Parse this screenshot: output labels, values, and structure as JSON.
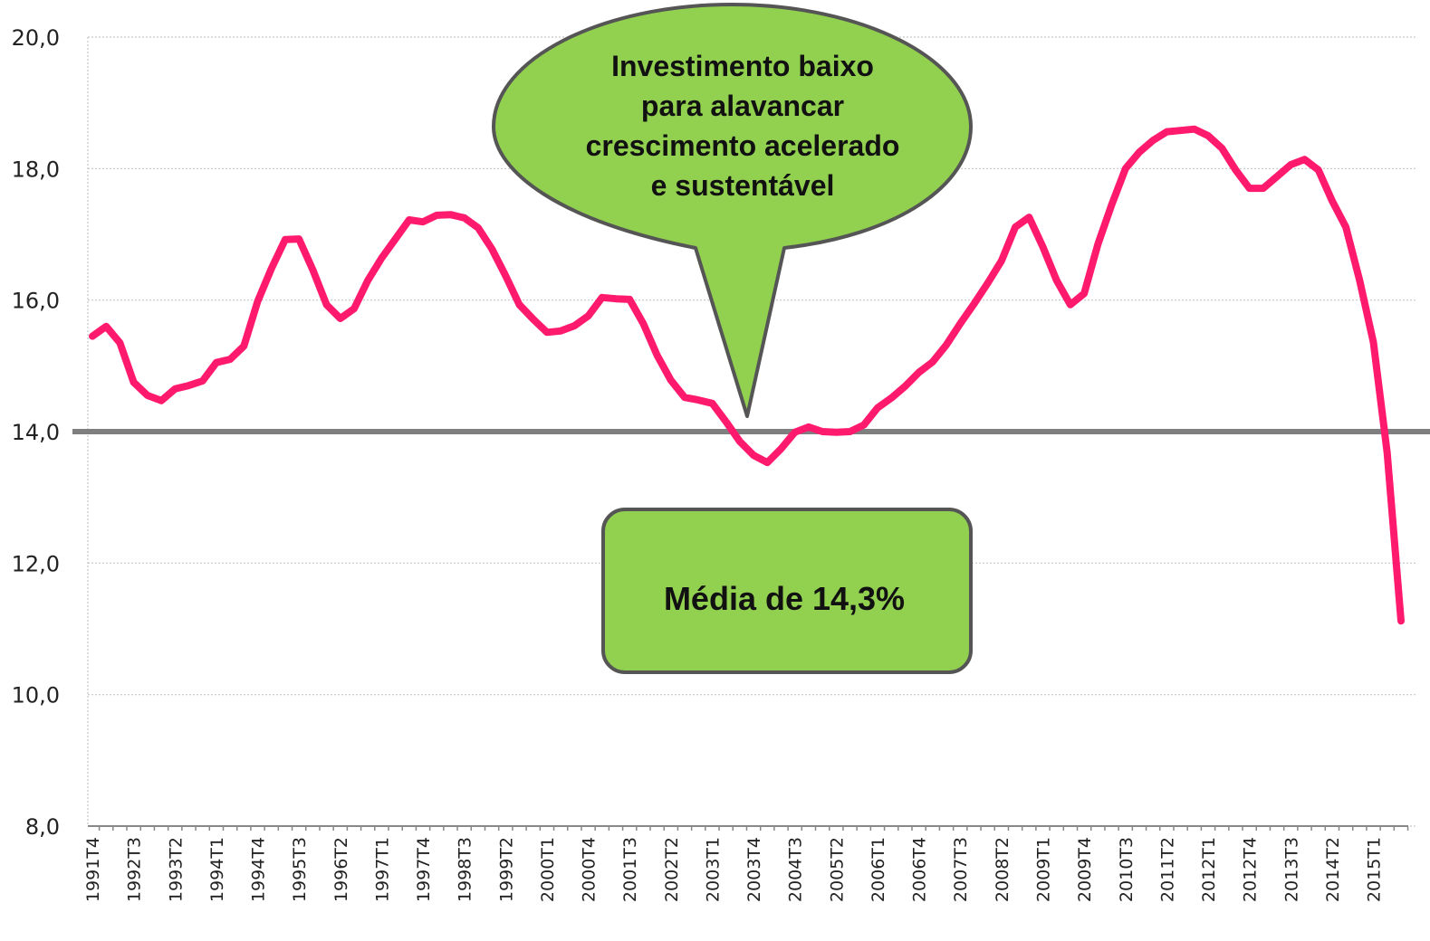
{
  "chart_data": {
    "type": "line",
    "categories": [
      "1991T4",
      null,
      null,
      "1992T3",
      null,
      null,
      "1993T2",
      null,
      null,
      "1994T1",
      null,
      null,
      "1994T4",
      null,
      null,
      "1995T3",
      null,
      null,
      "1996T2",
      null,
      null,
      "1997T1",
      null,
      null,
      "1997T4",
      null,
      null,
      "1998T3",
      null,
      null,
      "1999T2",
      null,
      null,
      "2000T1",
      null,
      null,
      "2000T4",
      null,
      null,
      "2001T3",
      null,
      null,
      "2002T2",
      null,
      null,
      "2003T1",
      null,
      null,
      "2003T4",
      null,
      null,
      "2004T3",
      null,
      null,
      "2005T2",
      null,
      null,
      "2006T1",
      null,
      null,
      "2006T4",
      null,
      null,
      "2007T3",
      null,
      null,
      "2008T2",
      null,
      null,
      "2009T1",
      null,
      null,
      "2009T4",
      null,
      null,
      "2010T3",
      null,
      null,
      "2011T2",
      null,
      null,
      "2012T1",
      null,
      null,
      "2012T4",
      null,
      null,
      "2013T3",
      null,
      null,
      "2014T2",
      null,
      null,
      "2015T1",
      null,
      null
    ],
    "values": [
      15.45,
      15.6,
      15.35,
      14.75,
      14.55,
      14.47,
      14.65,
      14.7,
      14.77,
      15.05,
      15.1,
      15.3,
      15.98,
      16.48,
      16.92,
      16.93,
      16.46,
      15.93,
      15.72,
      15.87,
      16.3,
      16.64,
      16.93,
      17.22,
      17.19,
      17.29,
      17.3,
      17.25,
      17.1,
      16.78,
      16.37,
      15.93,
      15.71,
      15.51,
      15.53,
      15.61,
      15.76,
      16.04,
      16.02,
      16.01,
      15.64,
      15.16,
      14.78,
      14.52,
      14.48,
      14.43,
      14.15,
      13.85,
      13.64,
      13.53,
      13.74,
      13.99,
      14.07,
      14.0,
      13.99,
      14.0,
      14.1,
      14.36,
      14.51,
      14.69,
      14.9,
      15.06,
      15.32,
      15.64,
      15.94,
      16.26,
      16.6,
      17.11,
      17.26,
      16.81,
      16.3,
      15.93,
      16.1,
      16.85,
      17.45,
      18.0,
      18.25,
      18.43,
      18.56,
      18.58,
      18.6,
      18.5,
      18.31,
      17.98,
      17.7,
      17.7,
      17.88,
      18.06,
      18.14,
      17.98,
      17.51,
      17.11,
      16.3,
      15.36,
      13.68,
      11.12
    ],
    "color": "#ff1a6e",
    "ylim": [
      8,
      20
    ],
    "yticks": [
      {
        "value": 8,
        "label": "8,0"
      },
      {
        "value": 10,
        "label": "10,0"
      },
      {
        "value": 12,
        "label": "12,0"
      },
      {
        "value": 14,
        "label": "14,0"
      },
      {
        "value": 16,
        "label": "16,0"
      },
      {
        "value": 18,
        "label": "18,0"
      },
      {
        "value": 20,
        "label": "20,0"
      }
    ],
    "grid": true,
    "reference_line": {
      "value": 14,
      "color": "#7f7f7f"
    },
    "annotations": [
      {
        "lines": [
          "Investimento baixo",
          "para alavancar",
          "crescimento acelerado",
          "e sustentável"
        ],
        "color": "#92d050"
      },
      {
        "text": "Média de 14,3%",
        "color": "#92d050"
      }
    ]
  }
}
